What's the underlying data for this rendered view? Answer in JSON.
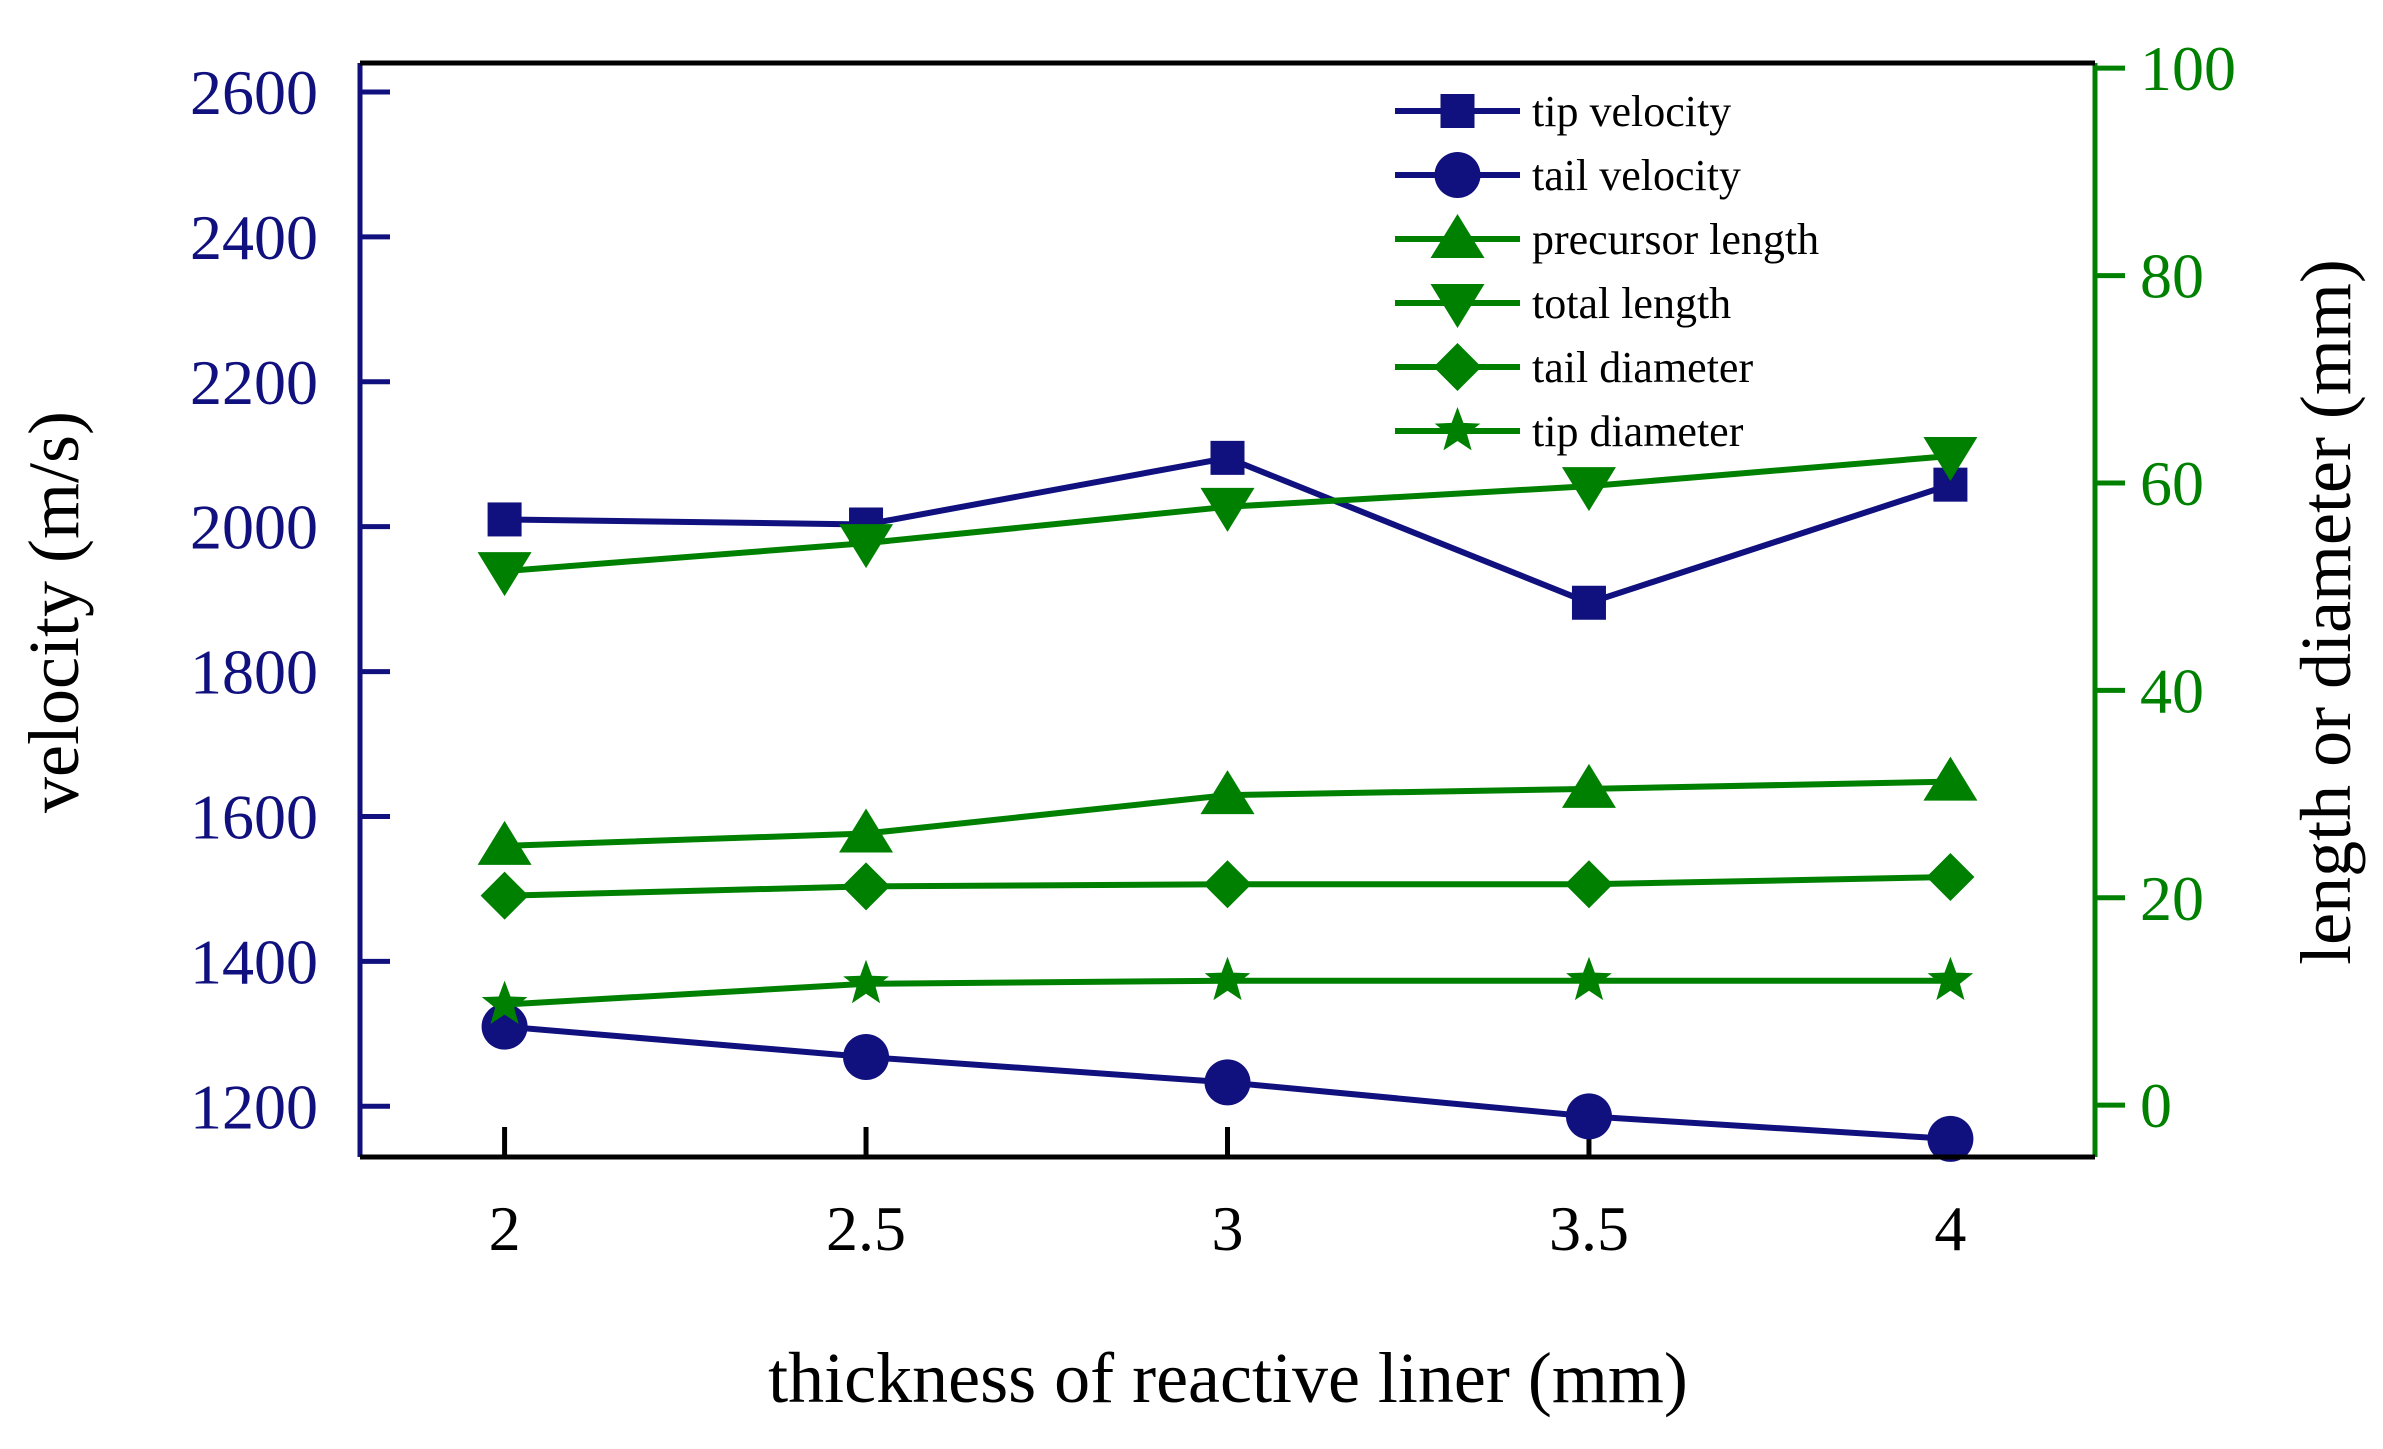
{
  "chart_data": {
    "type": "line",
    "x": [
      2,
      2.5,
      3,
      3.5,
      4
    ],
    "x_tick_labels": [
      "2",
      "2.5",
      "3",
      "3.5",
      "4"
    ],
    "xlabel": "thickness of reactive liner (mm)",
    "xlim": [
      1.8,
      4.2
    ],
    "ylabel_left": "velocity (m/s)",
    "ylim_left": [
      1130,
      2640
    ],
    "yticks_left": [
      1200,
      1400,
      1600,
      1800,
      2000,
      2200,
      2400,
      2600
    ],
    "ylabel_right": "length or diameter (mm)",
    "ylim_right": [
      -5,
      100.5
    ],
    "yticks_right": [
      0,
      20,
      40,
      60,
      80,
      100
    ],
    "legend_position": "top-right",
    "colors": {
      "velocity_axis": "#10107e",
      "length_axis": "#008000",
      "frame": "#000000"
    },
    "series": [
      {
        "name": "tip velocity",
        "axis": "left",
        "marker": "square",
        "color": "#10107e",
        "values": [
          2010,
          2003,
          2095,
          1895,
          2058
        ]
      },
      {
        "name": "tail velocity",
        "axis": "left",
        "marker": "circle",
        "color": "#10107e",
        "values": [
          1310,
          1268,
          1233,
          1186,
          1155
        ]
      },
      {
        "name": "precursor length",
        "axis": "right",
        "marker": "triangle-up",
        "color": "#008000",
        "values": [
          25.0,
          26.2,
          29.9,
          30.5,
          31.2
        ]
      },
      {
        "name": "total length",
        "axis": "right",
        "marker": "triangle-down",
        "color": "#008000",
        "values": [
          51.5,
          54.2,
          57.7,
          59.7,
          62.6
        ]
      },
      {
        "name": "tail diameter",
        "axis": "right",
        "marker": "diamond",
        "color": "#008000",
        "values": [
          20.2,
          21.1,
          21.3,
          21.3,
          22.0
        ]
      },
      {
        "name": "tip diameter",
        "axis": "right",
        "marker": "star",
        "color": "#008000",
        "values": [
          9.7,
          11.7,
          12.0,
          12.0,
          12.0
        ]
      }
    ]
  }
}
